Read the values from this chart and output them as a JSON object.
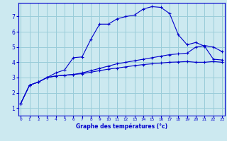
{
  "xlabel": "Graphe des températures (°c)",
  "bg_color": "#cce9f0",
  "grid_color": "#99ccd9",
  "line_color": "#0000cc",
  "x_ticks": [
    0,
    1,
    2,
    3,
    4,
    5,
    6,
    7,
    8,
    9,
    10,
    11,
    12,
    13,
    14,
    15,
    16,
    17,
    18,
    19,
    20,
    21,
    22,
    23
  ],
  "y_ticks": [
    1,
    2,
    3,
    4,
    5,
    6,
    7
  ],
  "ylim": [
    0.5,
    7.9
  ],
  "xlim": [
    -0.3,
    23.3
  ],
  "curve1_x": [
    0,
    1,
    2,
    3,
    4,
    5,
    6,
    7,
    8,
    9,
    10,
    11,
    12,
    13,
    14,
    15,
    16,
    17,
    18,
    19,
    20,
    21,
    22,
    23
  ],
  "curve1_y": [
    1.3,
    2.5,
    2.7,
    3.0,
    3.1,
    3.15,
    3.2,
    3.25,
    3.35,
    3.45,
    3.55,
    3.62,
    3.7,
    3.78,
    3.85,
    3.9,
    3.95,
    4.0,
    4.02,
    4.05,
    4.0,
    4.0,
    4.05,
    4.0
  ],
  "curve2_x": [
    0,
    1,
    2,
    3,
    4,
    5,
    6,
    7,
    8,
    9,
    10,
    11,
    12,
    13,
    14,
    15,
    16,
    17,
    18,
    19,
    20,
    21,
    22,
    23
  ],
  "curve2_y": [
    1.3,
    2.5,
    2.7,
    3.0,
    3.1,
    3.15,
    3.2,
    3.3,
    3.45,
    3.6,
    3.75,
    3.9,
    4.0,
    4.1,
    4.2,
    4.3,
    4.4,
    4.5,
    4.55,
    4.6,
    5.0,
    5.1,
    5.0,
    4.7
  ],
  "curve3_x": [
    0,
    1,
    2,
    3,
    4,
    5,
    6,
    7,
    8,
    9,
    10,
    11,
    12,
    13,
    14,
    15,
    16,
    17,
    18,
    19,
    20,
    21,
    22,
    23
  ],
  "curve3_y": [
    1.3,
    2.5,
    2.7,
    3.0,
    3.3,
    3.5,
    4.3,
    4.35,
    5.5,
    6.5,
    6.5,
    6.85,
    7.0,
    7.1,
    7.5,
    7.65,
    7.6,
    7.2,
    5.8,
    5.15,
    5.3,
    5.05,
    4.2,
    4.15
  ]
}
